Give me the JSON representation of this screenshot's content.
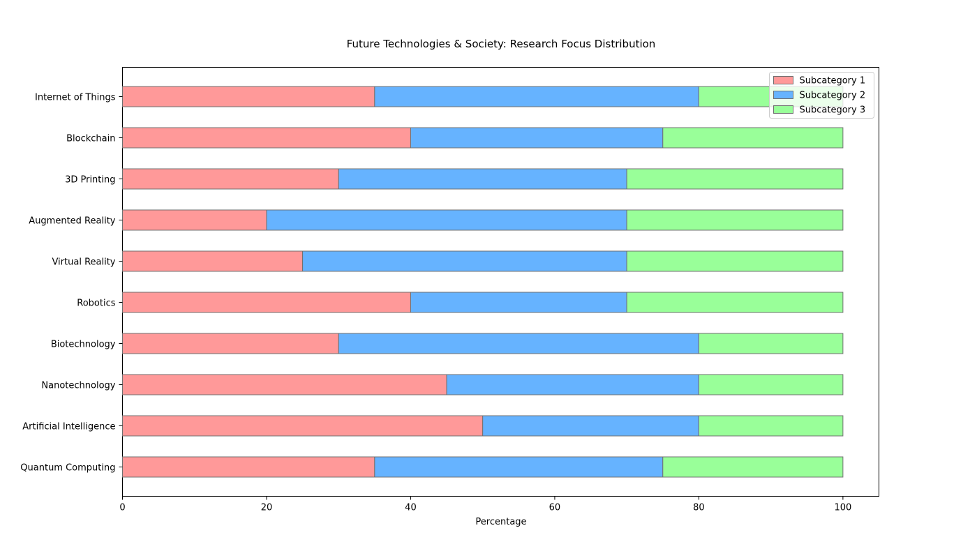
{
  "chart_data": {
    "type": "bar",
    "orientation": "horizontal",
    "stacked": true,
    "title": "Future Technologies & Society: Research Focus Distribution",
    "xlabel": "Percentage",
    "ylabel": "",
    "xlim": [
      0,
      105
    ],
    "xticks": [
      0,
      20,
      40,
      60,
      80,
      100
    ],
    "grid": false,
    "legend_position": "top-right",
    "categories": [
      "Quantum Computing",
      "Artificial Intelligence",
      "Nanotechnology",
      "Biotechnology",
      "Robotics",
      "Virtual Reality",
      "Augmented Reality",
      "3D Printing",
      "Blockchain",
      "Internet of Things"
    ],
    "series": [
      {
        "name": "Subcategory 1",
        "color": "#ff9999",
        "values": [
          35,
          50,
          45,
          30,
          40,
          25,
          20,
          30,
          40,
          35
        ]
      },
      {
        "name": "Subcategory 2",
        "color": "#66b3ff",
        "values": [
          40,
          30,
          35,
          50,
          30,
          45,
          50,
          40,
          35,
          45
        ]
      },
      {
        "name": "Subcategory 3",
        "color": "#99ff99",
        "values": [
          25,
          20,
          20,
          20,
          30,
          30,
          30,
          30,
          25,
          20
        ]
      }
    ]
  }
}
